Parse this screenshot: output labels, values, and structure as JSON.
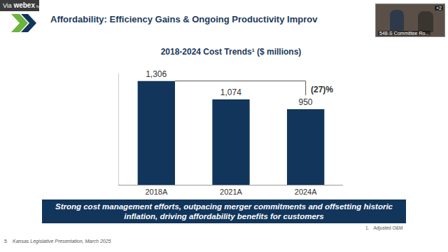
{
  "page": {
    "webex": {
      "via": "Via",
      "brand": "webex",
      "by": "by CISCO",
      "video_label": "548-S Committee Ro...",
      "participants": "+2"
    },
    "slide_title": "Affordability: Efficiency Gains & Ongoing Productivity Improv",
    "banner": "Strong cost management efforts, outpacing merger commitments and offsetting historic inflation, driving affordability benefits for customers",
    "footnote": {
      "number": "1.",
      "text": "Adjusted O&M"
    },
    "page_number": "5",
    "footer": "Kansas Legislative Presentation, March 2025"
  },
  "chart_data": {
    "type": "bar",
    "title": "2018-2024 Cost Trends¹ ($ millions)",
    "categories": [
      "2018A",
      "2021A",
      "2024A"
    ],
    "values": [
      1306,
      1074,
      950
    ],
    "value_labels": [
      "1,306",
      "1,074",
      "950"
    ],
    "color": "#12355b",
    "ylim": [
      0,
      1400
    ],
    "data_labels": true,
    "tick_labels": "x",
    "grid": false,
    "annotations": [
      {
        "text": "(27)%",
        "from": "2018A",
        "to": "2024A"
      }
    ]
  }
}
